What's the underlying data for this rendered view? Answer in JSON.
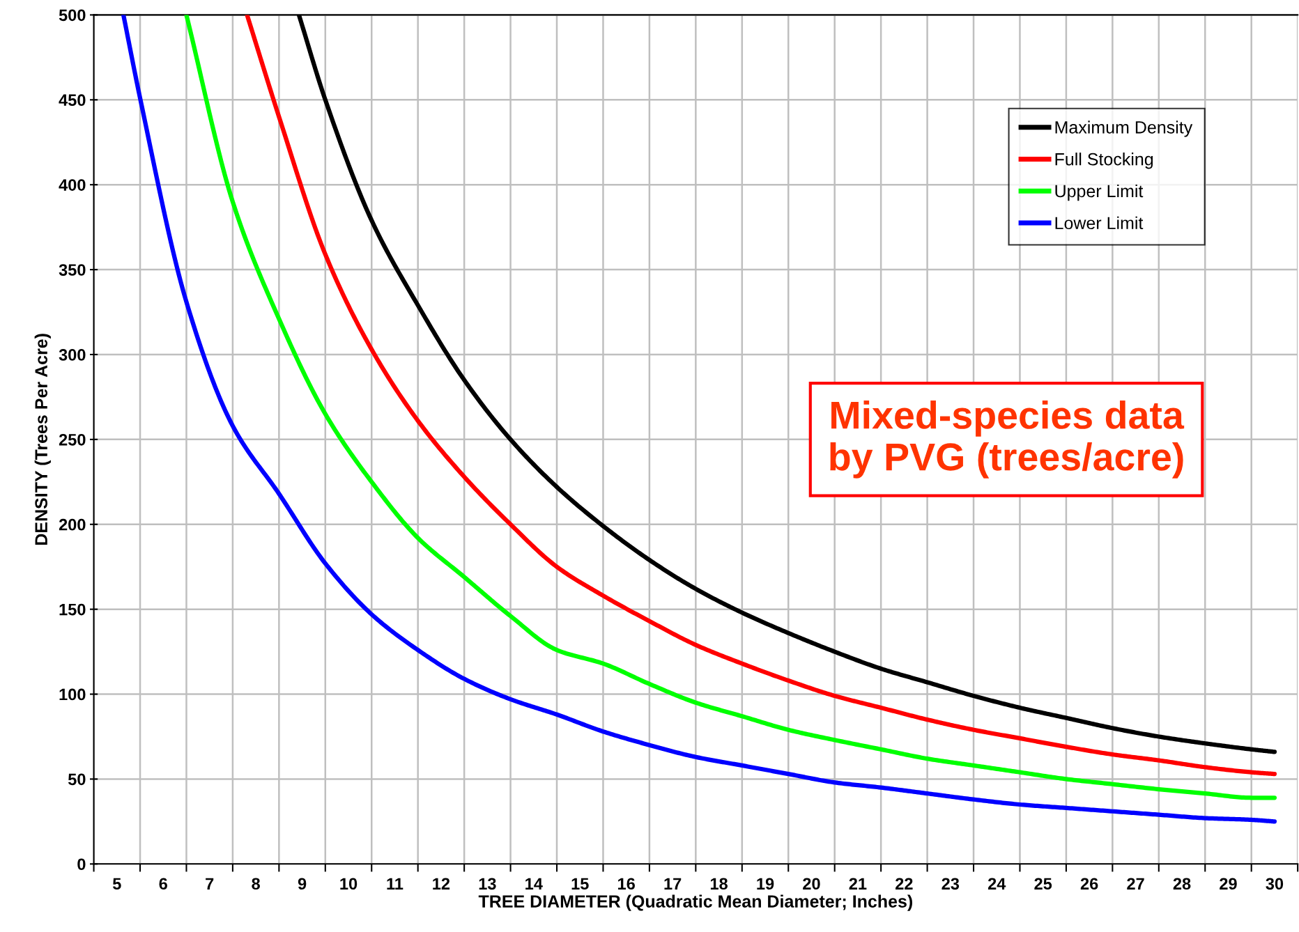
{
  "chart_data": {
    "type": "line",
    "xlabel": "TREE DIAMETER (Quadratic Mean Diameter; Inches)",
    "ylabel": "DENSITY (Trees Per Acre)",
    "annotations": [
      "Mixed-species data\nby PVG (trees/acre)"
    ],
    "xlim": [
      4.5,
      30.5
    ],
    "xticks": [
      5,
      6,
      7,
      8,
      9,
      10,
      11,
      12,
      13,
      14,
      15,
      16,
      17,
      18,
      19,
      20,
      21,
      22,
      23,
      24,
      25,
      26,
      27,
      28,
      29,
      30
    ],
    "ylim": [
      0,
      500
    ],
    "yticks": [
      0,
      50,
      100,
      150,
      200,
      250,
      300,
      350,
      400,
      450,
      500
    ],
    "grid": true,
    "legend": "top right",
    "marker": "none",
    "line_style": "solid",
    "series": [
      {
        "name": "Maximum Density",
        "color": "#000000",
        "x": [
          8.93,
          9.5,
          10.5,
          11.5,
          12.5,
          13.5,
          14.5,
          15.5,
          16.5,
          17.5,
          18.5,
          19.5,
          20.5,
          21.5,
          22.5,
          23.5,
          24.5,
          25.5,
          26.5,
          27.5,
          28.5,
          29.5,
          30
        ],
        "values": [
          500,
          450,
          379,
          329,
          285,
          250,
          222,
          199,
          179,
          162,
          148,
          136,
          125,
          115,
          107,
          99,
          92,
          86,
          80,
          75,
          71,
          67.5,
          66
        ]
      },
      {
        "name": "Full Stocking",
        "color": "#ff0000",
        "x": [
          7.81,
          8.5,
          9.5,
          10.5,
          11.5,
          12.5,
          13.5,
          14.5,
          15.5,
          16.5,
          17.5,
          18.5,
          19.5,
          20.5,
          21.5,
          22.5,
          23.5,
          24.5,
          25.5,
          26.5,
          27.5,
          28.5,
          29.5,
          30
        ],
        "values": [
          500,
          440,
          359,
          303,
          261,
          228,
          200,
          175,
          158,
          143,
          129,
          118,
          108,
          99,
          92,
          85,
          79,
          74,
          69,
          64.5,
          61,
          57,
          54,
          53
        ]
      },
      {
        "name": "Upper Limit",
        "color": "#00ff00",
        "x": [
          6.5,
          7.5,
          8.5,
          9.5,
          10.5,
          11.5,
          12.5,
          13.5,
          14.5,
          15.5,
          16.5,
          17.5,
          18.5,
          19.5,
          20.5,
          21.5,
          22.5,
          23.5,
          24.5,
          25.5,
          26.5,
          27.5,
          28.5,
          29.5,
          30
        ],
        "values": [
          500,
          390,
          321,
          265,
          225,
          192,
          169,
          146,
          126,
          118,
          106,
          95,
          87,
          79,
          73,
          67.5,
          62,
          58,
          54,
          50,
          47,
          44,
          41.5,
          39,
          39
        ]
      },
      {
        "name": "Lower Limit",
        "color": "#0000ff",
        "x": [
          5.14,
          5.5,
          6.5,
          7.5,
          8.5,
          9.5,
          10.5,
          11.5,
          12.5,
          13.5,
          14.5,
          15.5,
          16.5,
          17.5,
          18.5,
          19.5,
          20.5,
          21.5,
          22.5,
          23.5,
          24.5,
          25.5,
          26.5,
          27.5,
          28.5,
          29.5,
          30
        ],
        "values": [
          500,
          451,
          331,
          258,
          218,
          177,
          147,
          126,
          109,
          97,
          88,
          78,
          70,
          63,
          58,
          53,
          48,
          45,
          41.5,
          38,
          35,
          33,
          31,
          29,
          27,
          26,
          25
        ]
      }
    ]
  }
}
